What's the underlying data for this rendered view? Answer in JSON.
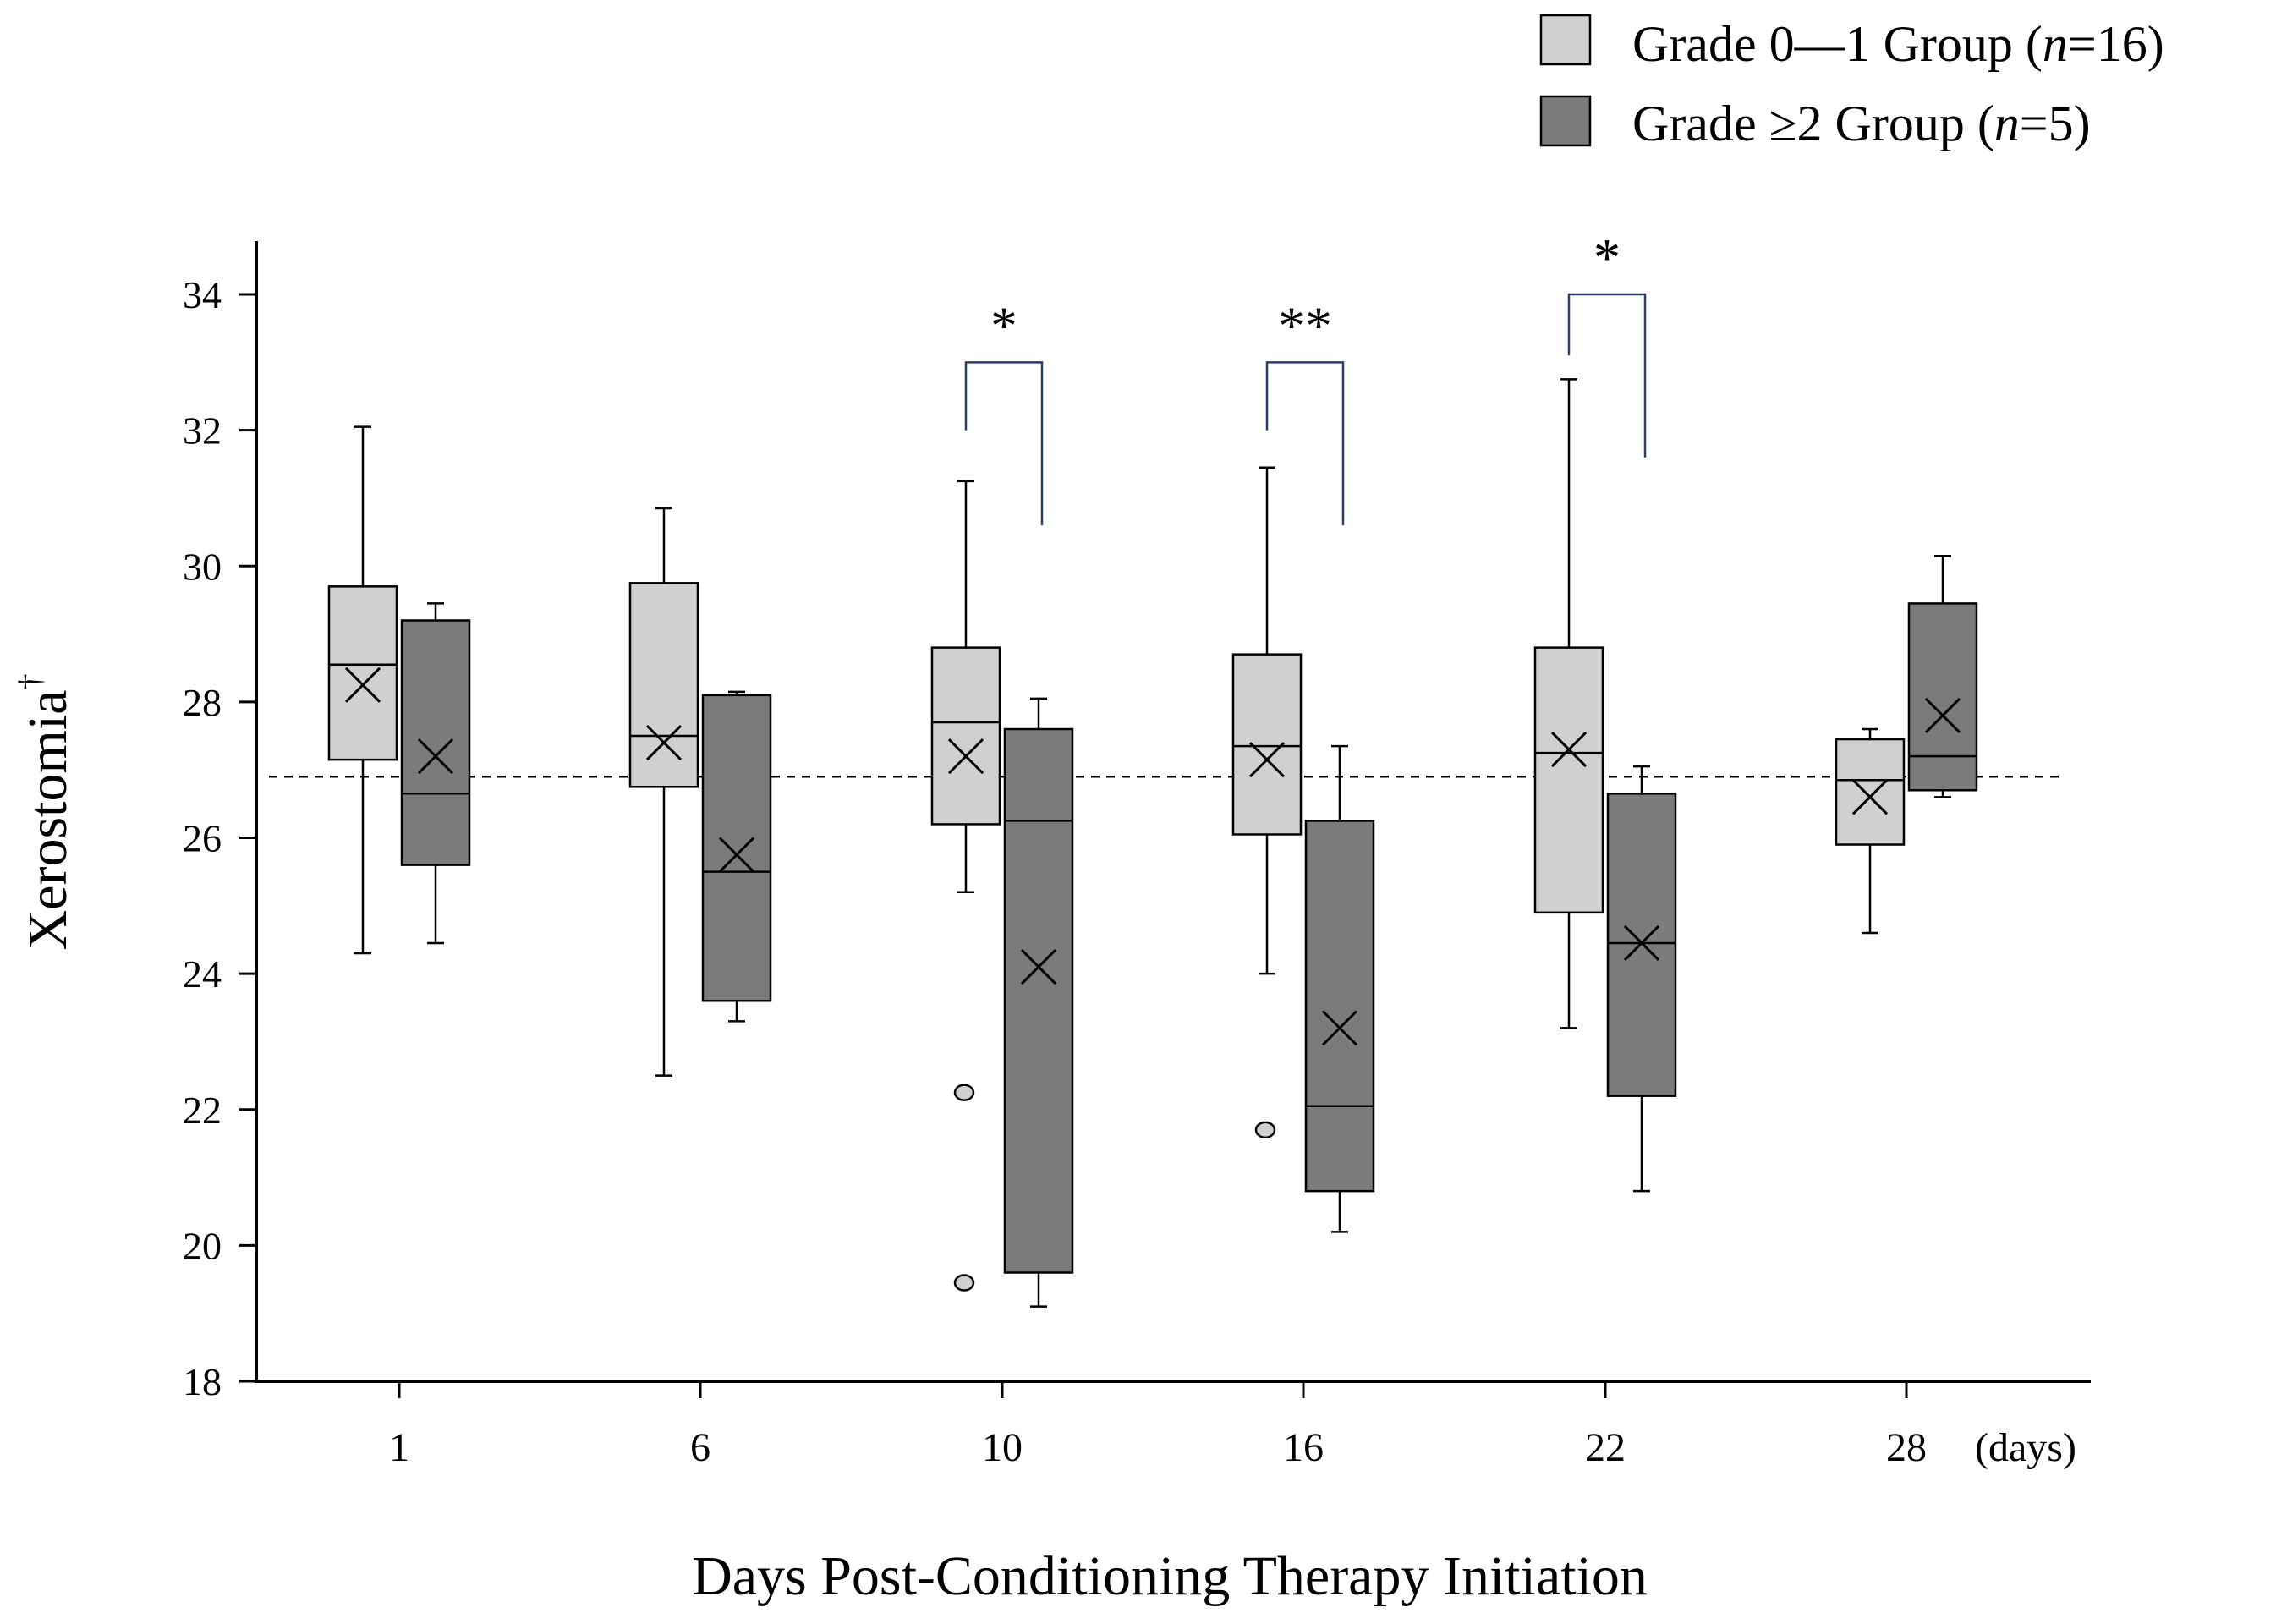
{
  "chart_data": {
    "type": "box",
    "ylabel": "Xerostomia",
    "ylabel_superscript": "†",
    "xlabel": "Days Post-Conditioning Therapy Initiation",
    "x_unit_label": "(days)",
    "ylim": [
      18,
      34.8
    ],
    "yticks": [
      18,
      20,
      22,
      24,
      26,
      28,
      30,
      32,
      34
    ],
    "reference_line": 26.9,
    "categories": [
      "1",
      "6",
      "10",
      "16",
      "22",
      "28"
    ],
    "legend": {
      "position": "top-right",
      "entries": [
        {
          "prefix": "Grade 0—1 Group (",
          "n_label": "n",
          "suffix": "=16)",
          "color": "#d0d0d0"
        },
        {
          "prefix": "Grade ≥2 Group (",
          "n_label": "n",
          "suffix": "=5)",
          "color": "#7b7b7b"
        }
      ]
    },
    "series": [
      {
        "name": "Grade 0—1 Group (n=16)",
        "color": "#d0d0d0",
        "boxes": [
          {
            "min": 24.3,
            "q1": 27.15,
            "median": 28.55,
            "q3": 29.7,
            "max": 32.05,
            "mean": 28.25,
            "outliers": []
          },
          {
            "min": 22.5,
            "q1": 26.75,
            "median": 27.5,
            "q3": 29.75,
            "max": 30.85,
            "mean": 27.4,
            "outliers": []
          },
          {
            "min": 25.2,
            "q1": 26.2,
            "median": 27.7,
            "q3": 28.8,
            "max": 31.25,
            "mean": 27.2,
            "outliers": [
              22.25,
              19.45
            ]
          },
          {
            "min": 24.0,
            "q1": 26.05,
            "median": 27.35,
            "q3": 28.7,
            "max": 31.45,
            "mean": 27.15,
            "outliers": [
              21.7
            ]
          },
          {
            "min": 23.2,
            "q1": 24.9,
            "median": 27.25,
            "q3": 28.8,
            "max": 32.75,
            "mean": 27.3,
            "outliers": []
          },
          {
            "min": 24.6,
            "q1": 25.9,
            "median": 26.85,
            "q3": 27.45,
            "max": 27.6,
            "mean": 26.6,
            "outliers": []
          }
        ]
      },
      {
        "name": "Grade ≥2 Group (n=5)",
        "color": "#7b7b7b",
        "boxes": [
          {
            "min": 24.45,
            "q1": 25.6,
            "median": 26.65,
            "q3": 29.2,
            "max": 29.45,
            "mean": 27.2,
            "outliers": []
          },
          {
            "min": 23.3,
            "q1": 23.6,
            "median": 25.5,
            "q3": 28.1,
            "max": 28.15,
            "mean": 25.75,
            "outliers": []
          },
          {
            "min": 19.1,
            "q1": 19.6,
            "median": 26.25,
            "q3": 27.6,
            "max": 28.05,
            "mean": 24.1,
            "outliers": []
          },
          {
            "min": 20.2,
            "q1": 20.8,
            "median": 22.05,
            "q3": 26.25,
            "max": 27.35,
            "mean": 23.2,
            "outliers": []
          },
          {
            "min": 20.8,
            "q1": 22.2,
            "median": 24.45,
            "q3": 26.65,
            "max": 27.05,
            "mean": 24.45,
            "outliers": []
          },
          {
            "min": 26.6,
            "q1": 26.7,
            "median": 27.2,
            "q3": 29.45,
            "max": 30.15,
            "mean": 27.8,
            "outliers": []
          }
        ]
      }
    ],
    "significance": [
      {
        "category": "10",
        "label": "*",
        "top": 33.0,
        "left_end": 32.0,
        "right_end": 30.6
      },
      {
        "category": "16",
        "label": "**",
        "top": 33.0,
        "left_end": 32.0,
        "right_end": 30.6
      },
      {
        "category": "22",
        "label": "*",
        "top": 34.0,
        "left_end": 33.1,
        "right_end": 31.6
      }
    ]
  }
}
